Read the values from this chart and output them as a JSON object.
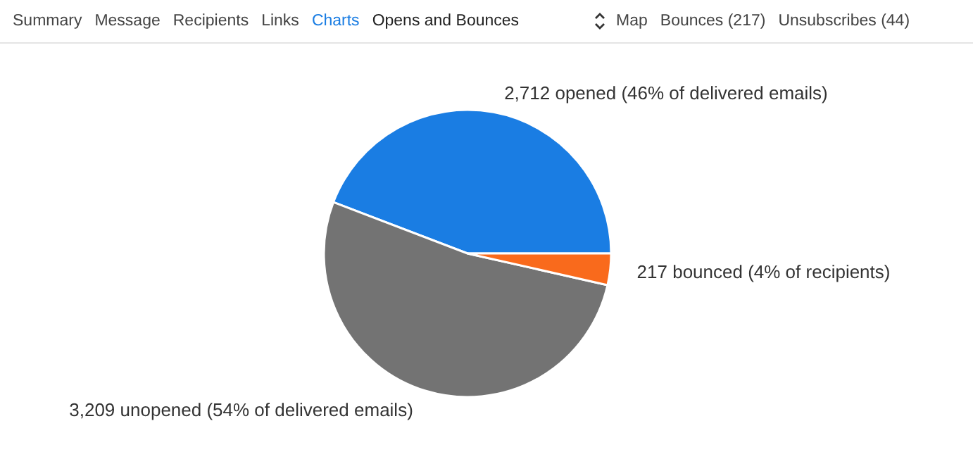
{
  "chart_data": {
    "type": "pie",
    "categories": [
      "2,712 opened (46% of delivered emails)",
      "3,209 unopened (54% of delivered emails)",
      "217 bounced (4% of recipients)"
    ],
    "values": [
      2712,
      3209,
      217
    ],
    "colors": [
      "#1a7de3",
      "#737373",
      "#f96a1c"
    ],
    "legend": false,
    "annotations": [
      "Summary",
      "Message",
      "Recipients",
      "Links",
      "Charts",
      "Opens and Bounces",
      "Map",
      "Bounces (217)",
      "Unsubscribes (44)"
    ]
  }
}
